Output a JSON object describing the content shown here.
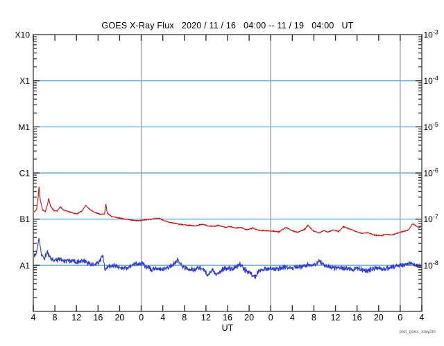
{
  "chart_data": {
    "type": "line",
    "title": "GOES X-Ray Flux   2020 / 11 / 16   04:00 -- 11 / 19   04:00   UT",
    "xlabel": "UT",
    "watermark": "plot_goes_xray2m",
    "x_range_hours": [
      4,
      76
    ],
    "x_tick_interval_hours": 4,
    "x_tick_labels": [
      "4",
      "8",
      "12",
      "16",
      "20",
      "0",
      "4",
      "8",
      "12",
      "16",
      "20",
      "0",
      "4",
      "8",
      "12",
      "16",
      "20",
      "0",
      "4"
    ],
    "day_boundaries_hours": [
      24,
      48,
      72
    ],
    "y_log_range_flux": [
      1e-09,
      0.001
    ],
    "left_axis_labels": [
      {
        "label": "X10",
        "flux": 0.001
      },
      {
        "label": "X1",
        "flux": 0.0001
      },
      {
        "label": "M1",
        "flux": 1e-05
      },
      {
        "label": "C1",
        "flux": 1e-06
      },
      {
        "label": "B1",
        "flux": 1e-07
      },
      {
        "label": "A1",
        "flux": 1e-08
      }
    ],
    "right_axis_exponents": [
      -3,
      -4,
      -5,
      -6,
      -7,
      -8
    ],
    "hline_flux_levels": [
      0.0001,
      1e-05,
      1e-06,
      1e-07,
      1e-08
    ],
    "grid": {
      "hline_color": "#63b1f2",
      "day_line_color": "#9b9b9b",
      "frame_color": "#7d7d7d",
      "tick_color": "#333333"
    },
    "legend_position": "none",
    "noise_seed": 11,
    "series": [
      {
        "name": "red-flux-trace",
        "color": "#e00000",
        "noise_decades": 0.012,
        "points": [
          [
            4,
            1.4e-07
          ],
          [
            4.6,
            1.6e-07
          ],
          [
            4.9,
            3e-07
          ],
          [
            5.05,
            5e-07
          ],
          [
            5.3,
            2.6e-07
          ],
          [
            5.7,
            1.6e-07
          ],
          [
            6.2,
            1.45e-07
          ],
          [
            6.6,
            2e-07
          ],
          [
            6.85,
            2.8e-07
          ],
          [
            7.2,
            1.9e-07
          ],
          [
            7.8,
            1.55e-07
          ],
          [
            8.4,
            1.5e-07
          ],
          [
            9.0,
            1.85e-07
          ],
          [
            9.5,
            1.6e-07
          ],
          [
            10.2,
            1.5e-07
          ],
          [
            11,
            1.4e-07
          ],
          [
            12,
            1.3e-07
          ],
          [
            13,
            1.5e-07
          ],
          [
            13.7,
            2e-07
          ],
          [
            14.4,
            1.65e-07
          ],
          [
            15.4,
            1.4e-07
          ],
          [
            16.4,
            1.28e-07
          ],
          [
            17.2,
            1.3e-07
          ],
          [
            17.45,
            2.1e-07
          ],
          [
            17.7,
            1.35e-07
          ],
          [
            18.5,
            1.15e-07
          ],
          [
            19.5,
            1.08e-07
          ],
          [
            21,
            1e-07
          ],
          [
            22,
            9.6e-08
          ],
          [
            23,
            9.3e-08
          ],
          [
            24,
            9.4e-08
          ],
          [
            25,
            9.8e-08
          ],
          [
            26,
            1e-07
          ],
          [
            27.3,
            1.05e-07
          ],
          [
            28.3,
            9.2e-08
          ],
          [
            29.5,
            8.4e-08
          ],
          [
            31,
            7.8e-08
          ],
          [
            32.5,
            7.4e-08
          ],
          [
            34,
            7.1e-08
          ],
          [
            35.4,
            7.8e-08
          ],
          [
            36.3,
            7.1e-08
          ],
          [
            37.5,
            7e-08
          ],
          [
            38.5,
            7.3e-08
          ],
          [
            39.5,
            6.6e-08
          ],
          [
            40.5,
            6.9e-08
          ],
          [
            41.5,
            6.4e-08
          ],
          [
            42.5,
            6.6e-08
          ],
          [
            43.5,
            5.9e-08
          ],
          [
            44.7,
            6.4e-08
          ],
          [
            45.8,
            5.7e-08
          ],
          [
            47,
            5.6e-08
          ],
          [
            48.5,
            5.5e-08
          ],
          [
            49.5,
            5.3e-08
          ],
          [
            50.8,
            6.6e-08
          ],
          [
            51.8,
            5.7e-08
          ],
          [
            53,
            5.2e-08
          ],
          [
            54.3,
            6e-08
          ],
          [
            54.9,
            7.4e-08
          ],
          [
            55.8,
            5.6e-08
          ],
          [
            57,
            5e-08
          ],
          [
            57.8,
            5.7e-08
          ],
          [
            58.6,
            5.2e-08
          ],
          [
            59.6,
            5.9e-08
          ],
          [
            60.6,
            5.4e-08
          ],
          [
            61.5,
            6.9e-08
          ],
          [
            62.3,
            6.3e-08
          ],
          [
            63.5,
            5.6e-08
          ],
          [
            64.8,
            4.9e-08
          ],
          [
            66,
            5.1e-08
          ],
          [
            67.2,
            4.5e-08
          ],
          [
            68.5,
            4.4e-08
          ],
          [
            69.5,
            4.7e-08
          ],
          [
            70.5,
            4.5e-08
          ],
          [
            71.5,
            5e-08
          ],
          [
            72.5,
            5.4e-08
          ],
          [
            73.5,
            5.8e-08
          ],
          [
            74.3,
            8e-08
          ],
          [
            74.9,
            7.2e-08
          ],
          [
            75.4,
            6.5e-08
          ],
          [
            76,
            7e-08
          ]
        ]
      },
      {
        "name": "blue-flux-trace",
        "color": "#2b3bd8",
        "noise_decades": 0.07,
        "points": [
          [
            4,
            1.5e-08
          ],
          [
            4.6,
            1.9e-08
          ],
          [
            5.05,
            3.8e-08
          ],
          [
            5.5,
            1.8e-08
          ],
          [
            6.0,
            1.35e-08
          ],
          [
            6.6,
            1.9e-08
          ],
          [
            7.2,
            1.4e-08
          ],
          [
            8,
            1.25e-08
          ],
          [
            9,
            1.35e-08
          ],
          [
            10,
            1.2e-08
          ],
          [
            11,
            1.25e-08
          ],
          [
            12,
            1.15e-08
          ],
          [
            13,
            1.3e-08
          ],
          [
            14,
            1.15e-08
          ],
          [
            15,
            1.05e-08
          ],
          [
            16,
            1.1e-08
          ],
          [
            16.9,
            1.6e-08
          ],
          [
            17.3,
            7.5e-09
          ],
          [
            18,
            9.5e-09
          ],
          [
            19,
            1e-08
          ],
          [
            20,
            9e-09
          ],
          [
            21,
            8.6e-09
          ],
          [
            22,
            9.5e-09
          ],
          [
            23,
            1.05e-08
          ],
          [
            24,
            1.1e-08
          ],
          [
            25,
            9e-09
          ],
          [
            26,
            8e-09
          ],
          [
            27,
            8.5e-09
          ],
          [
            28,
            8e-09
          ],
          [
            29,
            9e-09
          ],
          [
            30,
            1.05e-08
          ],
          [
            30.8,
            1.3e-08
          ],
          [
            31.6,
            9.5e-09
          ],
          [
            32.5,
            8.5e-09
          ],
          [
            33.5,
            8e-09
          ],
          [
            34.5,
            8.8e-09
          ],
          [
            35.5,
            8.2e-09
          ],
          [
            36.4,
            6e-09
          ],
          [
            37.2,
            8e-09
          ],
          [
            38,
            6.5e-09
          ],
          [
            39,
            8e-09
          ],
          [
            40,
            8.8e-09
          ],
          [
            41,
            8.2e-09
          ],
          [
            42.3,
            1.05e-08
          ],
          [
            43.2,
            8e-09
          ],
          [
            44,
            7.2e-09
          ],
          [
            45,
            5.4e-09
          ],
          [
            45.8,
            7.5e-09
          ],
          [
            47,
            8.2e-09
          ],
          [
            48,
            8.8e-09
          ],
          [
            49,
            8.2e-09
          ],
          [
            50,
            8.8e-09
          ],
          [
            51,
            9.2e-09
          ],
          [
            52,
            8.6e-09
          ],
          [
            53,
            9.2e-09
          ],
          [
            54,
            9.6e-09
          ],
          [
            55,
            1e-08
          ],
          [
            56,
            1.05e-08
          ],
          [
            57,
            1.2e-08
          ],
          [
            58,
            1e-08
          ],
          [
            59,
            9e-09
          ],
          [
            60,
            8.6e-09
          ],
          [
            61,
            9.2e-09
          ],
          [
            62,
            8.6e-09
          ],
          [
            63,
            8e-09
          ],
          [
            64,
            8.6e-09
          ],
          [
            65,
            8e-09
          ],
          [
            66,
            7.5e-09
          ],
          [
            67,
            8.2e-09
          ],
          [
            68,
            8.8e-09
          ],
          [
            69,
            8.2e-09
          ],
          [
            70,
            9e-09
          ],
          [
            71,
            9.6e-09
          ],
          [
            72,
            1e-08
          ],
          [
            73,
            1.05e-08
          ],
          [
            74,
            1.1e-08
          ],
          [
            75,
            1e-08
          ],
          [
            76,
            9.5e-09
          ]
        ]
      }
    ]
  }
}
